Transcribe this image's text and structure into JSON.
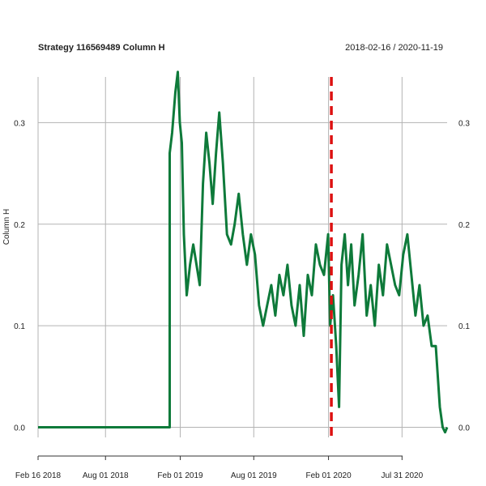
{
  "chart_data": {
    "type": "line",
    "title": "Strategy 116569489 Column H",
    "date_range": "2018-02-16 / 2020-11-19",
    "ylabel": "Column H",
    "xlabel": "",
    "x_range": [
      "2018-02-16",
      "2020-11-19"
    ],
    "ylim": [
      -0.01,
      0.345
    ],
    "y_ticks": [
      0.0,
      0.1,
      0.2,
      0.3
    ],
    "y_tick_labels": [
      "0.0",
      "0.1",
      "0.2",
      "0.3"
    ],
    "x_ticks": [
      "2018-02-16",
      "2018-08-01",
      "2019-02-01",
      "2019-08-01",
      "2020-02-01",
      "2020-07-31"
    ],
    "x_tick_labels": [
      "Feb 16 2018",
      "Aug 01 2018",
      "Feb 01 2019",
      "Aug 01 2019",
      "Feb 01 2020",
      "Jul 31 2020"
    ],
    "grid": true,
    "series_color": "#0e7a3a",
    "marker_color": "#dd1111",
    "vline": {
      "date": "2020-02-08",
      "style": "dashed"
    },
    "series": [
      {
        "x": [
          "2018-02-16",
          "2018-06-01",
          "2018-10-01",
          "2019-01-06",
          "2019-01-06",
          "2019-01-12",
          "2019-01-20",
          "2019-01-26",
          "2019-01-31",
          "2019-02-05",
          "2019-02-10",
          "2019-02-17",
          "2019-02-25",
          "2019-03-05",
          "2019-03-13",
          "2019-03-21",
          "2019-03-29",
          "2019-04-06",
          "2019-04-14",
          "2019-04-22",
          "2019-04-30",
          "2019-05-08",
          "2019-05-17",
          "2019-05-27",
          "2019-06-06",
          "2019-06-15",
          "2019-06-25",
          "2019-07-05",
          "2019-07-15",
          "2019-07-25",
          "2019-08-04",
          "2019-08-14",
          "2019-08-24",
          "2019-09-03",
          "2019-09-13",
          "2019-09-23",
          "2019-10-03",
          "2019-10-13",
          "2019-10-23",
          "2019-11-02",
          "2019-11-12",
          "2019-11-22",
          "2019-12-02",
          "2019-12-12",
          "2019-12-22",
          "2020-01-01",
          "2020-01-11",
          "2020-01-21",
          "2020-01-31",
          "2020-02-05",
          "2020-02-12",
          "2020-02-20",
          "2020-02-27",
          "2020-03-04",
          "2020-03-12",
          "2020-03-20",
          "2020-03-28",
          "2020-04-05",
          "2020-04-15",
          "2020-04-25",
          "2020-05-05",
          "2020-05-15",
          "2020-05-25",
          "2020-06-04",
          "2020-06-14",
          "2020-06-24",
          "2020-07-04",
          "2020-07-14",
          "2020-07-24",
          "2020-08-03",
          "2020-08-13",
          "2020-08-23",
          "2020-09-02",
          "2020-09-12",
          "2020-09-22",
          "2020-10-02",
          "2020-10-12",
          "2020-10-22",
          "2020-11-01",
          "2020-11-08",
          "2020-11-14",
          "2020-11-19"
        ],
        "values": [
          0.0,
          0.0,
          0.0,
          0.0,
          0.27,
          0.29,
          0.33,
          0.35,
          0.3,
          0.28,
          0.19,
          0.13,
          0.16,
          0.18,
          0.16,
          0.14,
          0.24,
          0.29,
          0.26,
          0.22,
          0.27,
          0.31,
          0.26,
          0.19,
          0.18,
          0.2,
          0.23,
          0.19,
          0.16,
          0.19,
          0.17,
          0.12,
          0.1,
          0.12,
          0.14,
          0.11,
          0.15,
          0.13,
          0.16,
          0.12,
          0.1,
          0.14,
          0.09,
          0.15,
          0.13,
          0.18,
          0.16,
          0.15,
          0.19,
          0.1,
          0.13,
          0.08,
          0.02,
          0.16,
          0.19,
          0.14,
          0.18,
          0.12,
          0.15,
          0.19,
          0.11,
          0.14,
          0.1,
          0.16,
          0.13,
          0.18,
          0.16,
          0.14,
          0.13,
          0.17,
          0.19,
          0.15,
          0.11,
          0.14,
          0.1,
          0.11,
          0.08,
          0.08,
          0.02,
          0.0,
          -0.005,
          0.0
        ]
      }
    ]
  }
}
